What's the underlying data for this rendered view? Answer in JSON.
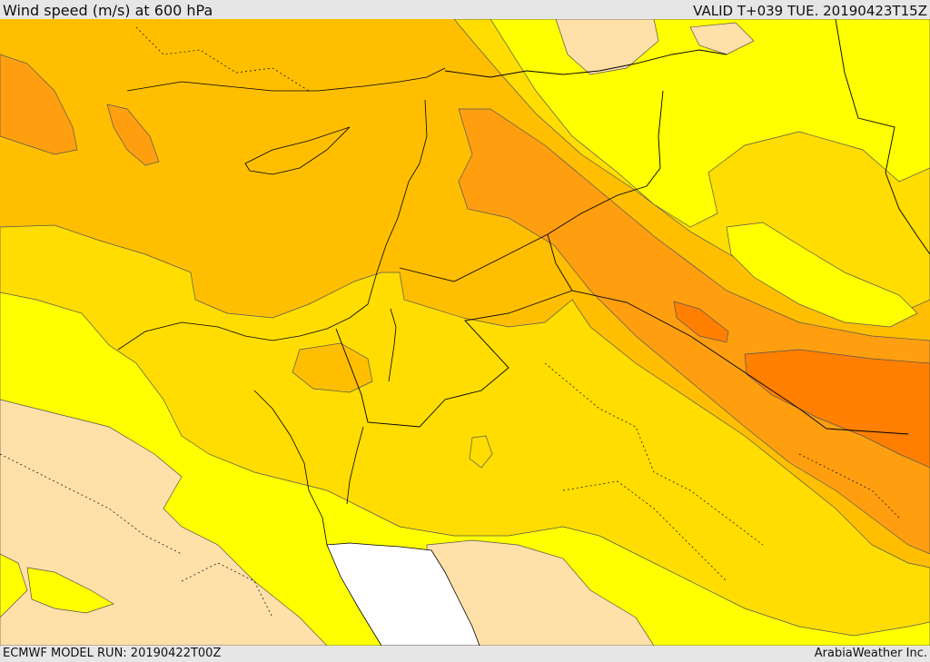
{
  "header": {
    "title": "Wind speed (m/s) at 600 hPa",
    "valid": "VALID T+039 TUE. 20190423T15Z"
  },
  "footer": {
    "model_run": "ECMWF MODEL RUN: 20190422T00Z",
    "credit": "ArabiaWeather Inc."
  },
  "colors": {
    "band_under_10": "#ffe0a8",
    "band_10_15": "#ffff00",
    "band_15_20": "#ffdd00",
    "band_20_25": "#ffbf00",
    "band_25_30": "#ff9f10",
    "band_30_35": "#ff7f00",
    "red_sea": "#ffffff",
    "coastline": "#000000",
    "contour": "#444444"
  }
}
